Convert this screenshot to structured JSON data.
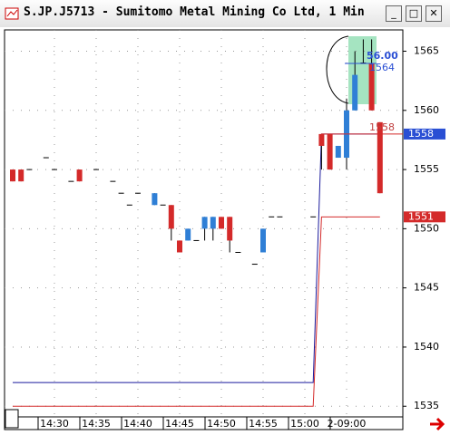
{
  "window_title": "S.JP.J5713 - Sumitomo Metal Mining Co Ltd, 1 Min",
  "chart_data": {
    "type": "candlestick",
    "categories": [
      null,
      null,
      null,
      null,
      null,
      "14:30",
      null,
      null,
      null,
      null,
      "14:35",
      null,
      null,
      null,
      null,
      "14:40",
      null,
      null,
      null,
      null,
      "14:45",
      null,
      null,
      null,
      null,
      "14:50",
      null,
      null,
      null,
      null,
      "14:55",
      null,
      null,
      null,
      null,
      "15:00",
      null,
      null,
      null,
      null,
      "2-09:00",
      null,
      null,
      null,
      null
    ],
    "open": [
      1555,
      1555,
      1555,
      null,
      1556,
      1555,
      null,
      1554,
      1555,
      null,
      1555,
      null,
      1554,
      1553,
      1552,
      1553,
      null,
      1552,
      1552,
      1552,
      1549,
      1549,
      1549,
      1550,
      1550,
      1551,
      1551,
      1548,
      null,
      1547,
      1548,
      1551,
      1551,
      null,
      null,
      null,
      1551,
      1558,
      1558,
      1556,
      1556,
      1560,
      1564,
      1564,
      1559
    ],
    "high": [
      1555,
      1555,
      1555,
      null,
      1556,
      1555,
      null,
      1554,
      1555,
      null,
      1555,
      null,
      1554,
      1553,
      1552,
      1553,
      null,
      1553,
      1552,
      1552,
      1549,
      1550,
      1549,
      1551,
      1551,
      1551,
      1551,
      1548,
      null,
      1547,
      1550,
      1551,
      1551,
      null,
      null,
      null,
      1551,
      1558,
      1558,
      1557,
      1561,
      1565,
      1566,
      1566,
      1559
    ],
    "low": [
      1554,
      1554,
      1555,
      null,
      1556,
      1555,
      null,
      1554,
      1554,
      null,
      1555,
      null,
      1554,
      1553,
      1552,
      1553,
      null,
      1552,
      1552,
      1549,
      1548,
      1549,
      1549,
      1549,
      1549,
      1550,
      1548,
      1548,
      null,
      1547,
      1548,
      1551,
      1551,
      null,
      null,
      null,
      1551,
      1555,
      1555,
      1556,
      1555,
      1560,
      1564,
      1560,
      1553
    ],
    "close": [
      1554,
      1554,
      1555,
      null,
      1556,
      1555,
      null,
      1554,
      1554,
      null,
      1555,
      null,
      1554,
      1553,
      1552,
      1553,
      null,
      1553,
      1552,
      1550,
      1548,
      1550,
      1549,
      1551,
      1551,
      1550,
      1549,
      1548,
      null,
      1547,
      1550,
      1551,
      1551,
      null,
      null,
      null,
      1551,
      1557,
      1555,
      1557,
      1560,
      1563,
      1564,
      1560,
      1553
    ],
    "up_color": "#2f7fd6",
    "down_color": "#d42a2a",
    "lines": [
      {
        "color": "#1a1a9c",
        "values": [
          1537,
          1537,
          1537,
          1537,
          1537,
          1537,
          1537,
          1537,
          1537,
          1537,
          1537,
          1537,
          1537,
          1537,
          1537,
          1537,
          1537,
          1537,
          1537,
          1537,
          1537,
          1537,
          1537,
          1537,
          1537,
          1537,
          1537,
          1537,
          1537,
          1537,
          1537,
          1537,
          1537,
          1537,
          1537,
          1537,
          1537,
          1558,
          1558,
          1558,
          1558,
          1558,
          1558,
          1558,
          1558
        ]
      },
      {
        "color": "#d42a2a",
        "values": [
          1535,
          1535,
          1535,
          1535,
          1535,
          1535,
          1535,
          1535,
          1535,
          1535,
          1535,
          1535,
          1535,
          1535,
          1535,
          1535,
          1535,
          1535,
          1535,
          1535,
          1535,
          1535,
          1535,
          1535,
          1535,
          1535,
          1535,
          1535,
          1535,
          1535,
          1535,
          1535,
          1535,
          1535,
          1535,
          1535,
          1535,
          1551,
          1551,
          1551,
          1551,
          1551,
          1551,
          1551,
          1551
        ]
      }
    ],
    "price_markers": [
      {
        "value": 1558,
        "color": "#2a4fd4"
      },
      {
        "value": 1551,
        "color": "#d42a2a"
      }
    ],
    "annotations": [
      "56.00",
      "1564",
      "1558"
    ],
    "ylim": [
      1534.1,
      1566.8
    ],
    "yticks": [
      1535,
      1540,
      1545,
      1550,
      1555,
      1560,
      1565
    ],
    "grid": true
  }
}
